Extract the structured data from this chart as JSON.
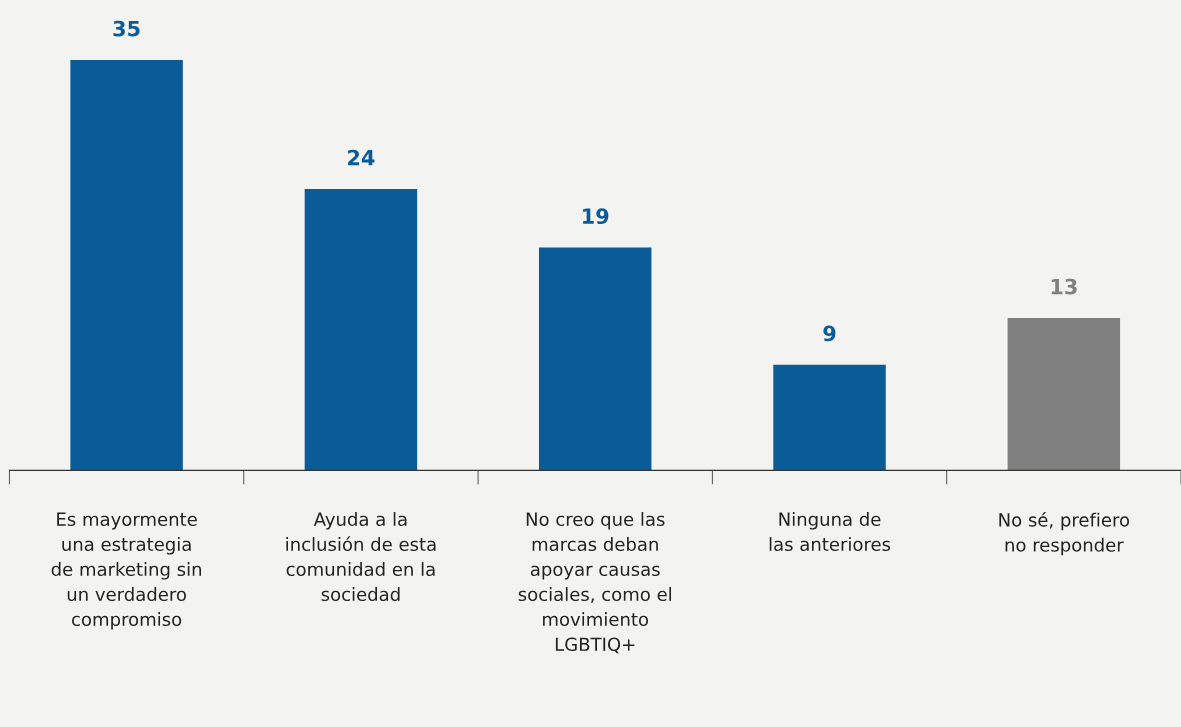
{
  "chart_data": {
    "type": "bar",
    "categories": [
      "Es mayormente\nuna estrategia\nde marketing sin\nun verdadero\ncompromiso",
      "Ayuda a la\ninclusión de esta\ncomunidad en la\nsociedad",
      "No creo que las\nmarcas deban\napoyar causas\nsociales, como el\nmovimiento\nLGBTIQ+",
      "Ninguna de\nlas anteriores",
      "No sé, prefiero\nno responder"
    ],
    "values": [
      35,
      24,
      19,
      9,
      13
    ],
    "colors": [
      "#0b5c96",
      "#0b5c96",
      "#0b5c96",
      "#0b5c96",
      "#808080"
    ],
    "data_labels": true,
    "grid": false,
    "legend": false,
    "tick_labels": "x"
  }
}
